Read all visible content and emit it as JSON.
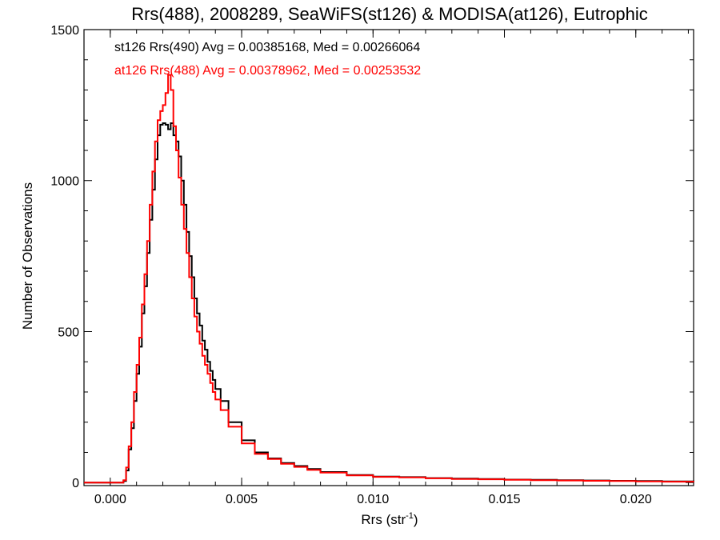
{
  "chart_data": {
    "type": "line",
    "title": "Rrs(488), 2008289, SeaWiFS(st126) & MODISA(at126), Eutrophic",
    "xlabel": "Rrs (str",
    "xlabel_sup": "-1",
    "xlabel_suffix": ")",
    "ylabel": "Number of Observations",
    "xlim": [
      -0.001,
      0.0222
    ],
    "ylim": [
      -10,
      1500
    ],
    "xticks": [
      0.0,
      0.005,
      0.01,
      0.015,
      0.02
    ],
    "xtick_labels": [
      "0.000",
      "0.005",
      "0.010",
      "0.015",
      "0.020"
    ],
    "yticks": [
      0,
      500,
      1000,
      1500
    ],
    "ytick_labels": [
      "0",
      "500",
      "1000",
      "1500"
    ],
    "grid": false,
    "legend_position": "top-left",
    "series": [
      {
        "name": "st126 Rrs(490) Avg = 0.00385168, Med = 0.00266064",
        "color": "#000000",
        "points": [
          [
            -0.001,
            0
          ],
          [
            0.0004,
            0
          ],
          [
            0.0005,
            5
          ],
          [
            0.0006,
            40
          ],
          [
            0.0007,
            110
          ],
          [
            0.0008,
            180
          ],
          [
            0.0009,
            270
          ],
          [
            0.001,
            360
          ],
          [
            0.0011,
            450
          ],
          [
            0.0012,
            560
          ],
          [
            0.0013,
            650
          ],
          [
            0.0014,
            760
          ],
          [
            0.0015,
            870
          ],
          [
            0.0016,
            970
          ],
          [
            0.0017,
            1070
          ],
          [
            0.0018,
            1150
          ],
          [
            0.0019,
            1185
          ],
          [
            0.002,
            1190
          ],
          [
            0.0021,
            1185
          ],
          [
            0.0022,
            1170
          ],
          [
            0.0023,
            1190
          ],
          [
            0.0024,
            1150
          ],
          [
            0.0025,
            1130
          ],
          [
            0.0026,
            1080
          ],
          [
            0.0027,
            1000
          ],
          [
            0.0028,
            920
          ],
          [
            0.0029,
            830
          ],
          [
            0.003,
            750
          ],
          [
            0.0031,
            680
          ],
          [
            0.0032,
            610
          ],
          [
            0.0033,
            560
          ],
          [
            0.0034,
            520
          ],
          [
            0.0035,
            470
          ],
          [
            0.0036,
            440
          ],
          [
            0.0037,
            400
          ],
          [
            0.0038,
            370
          ],
          [
            0.0039,
            340
          ],
          [
            0.004,
            310
          ],
          [
            0.0042,
            270
          ],
          [
            0.0045,
            200
          ],
          [
            0.005,
            140
          ],
          [
            0.0055,
            100
          ],
          [
            0.006,
            80
          ],
          [
            0.0065,
            65
          ],
          [
            0.007,
            55
          ],
          [
            0.0075,
            45
          ],
          [
            0.008,
            35
          ],
          [
            0.009,
            25
          ],
          [
            0.01,
            20
          ],
          [
            0.011,
            18
          ],
          [
            0.012,
            15
          ],
          [
            0.013,
            13
          ],
          [
            0.014,
            12
          ],
          [
            0.015,
            10
          ],
          [
            0.016,
            9
          ],
          [
            0.017,
            8
          ],
          [
            0.018,
            7
          ],
          [
            0.019,
            6
          ],
          [
            0.02,
            5
          ],
          [
            0.021,
            4
          ],
          [
            0.0222,
            3
          ]
        ]
      },
      {
        "name": "at126 Rrs(488) Avg = 0.00378962, Med = 0.00253532",
        "color": "#ff0000",
        "points": [
          [
            -0.001,
            0
          ],
          [
            0.0004,
            0
          ],
          [
            0.0005,
            8
          ],
          [
            0.0006,
            50
          ],
          [
            0.0007,
            120
          ],
          [
            0.0008,
            200
          ],
          [
            0.0009,
            300
          ],
          [
            0.001,
            390
          ],
          [
            0.0011,
            480
          ],
          [
            0.0012,
            590
          ],
          [
            0.0013,
            690
          ],
          [
            0.0014,
            800
          ],
          [
            0.0015,
            920
          ],
          [
            0.0016,
            1030
          ],
          [
            0.0017,
            1130
          ],
          [
            0.0018,
            1200
          ],
          [
            0.0019,
            1230
          ],
          [
            0.002,
            1250
          ],
          [
            0.0021,
            1290
          ],
          [
            0.0022,
            1350
          ],
          [
            0.0023,
            1300
          ],
          [
            0.0024,
            1180
          ],
          [
            0.0025,
            1100
          ],
          [
            0.0026,
            1010
          ],
          [
            0.0027,
            920
          ],
          [
            0.0028,
            840
          ],
          [
            0.0029,
            760
          ],
          [
            0.003,
            680
          ],
          [
            0.0031,
            610
          ],
          [
            0.0032,
            550
          ],
          [
            0.0033,
            500
          ],
          [
            0.0034,
            460
          ],
          [
            0.0035,
            420
          ],
          [
            0.0036,
            390
          ],
          [
            0.0037,
            360
          ],
          [
            0.0038,
            330
          ],
          [
            0.0039,
            300
          ],
          [
            0.004,
            275
          ],
          [
            0.0042,
            240
          ],
          [
            0.0045,
            185
          ],
          [
            0.005,
            130
          ],
          [
            0.0055,
            95
          ],
          [
            0.006,
            78
          ],
          [
            0.0065,
            62
          ],
          [
            0.007,
            52
          ],
          [
            0.0075,
            42
          ],
          [
            0.008,
            33
          ],
          [
            0.009,
            24
          ],
          [
            0.01,
            19
          ],
          [
            0.011,
            17
          ],
          [
            0.012,
            14
          ],
          [
            0.013,
            12
          ],
          [
            0.014,
            11
          ],
          [
            0.015,
            9
          ],
          [
            0.016,
            8
          ],
          [
            0.017,
            7
          ],
          [
            0.018,
            6
          ],
          [
            0.019,
            5
          ],
          [
            0.02,
            4
          ],
          [
            0.021,
            3
          ],
          [
            0.0222,
            2
          ]
        ]
      }
    ]
  }
}
